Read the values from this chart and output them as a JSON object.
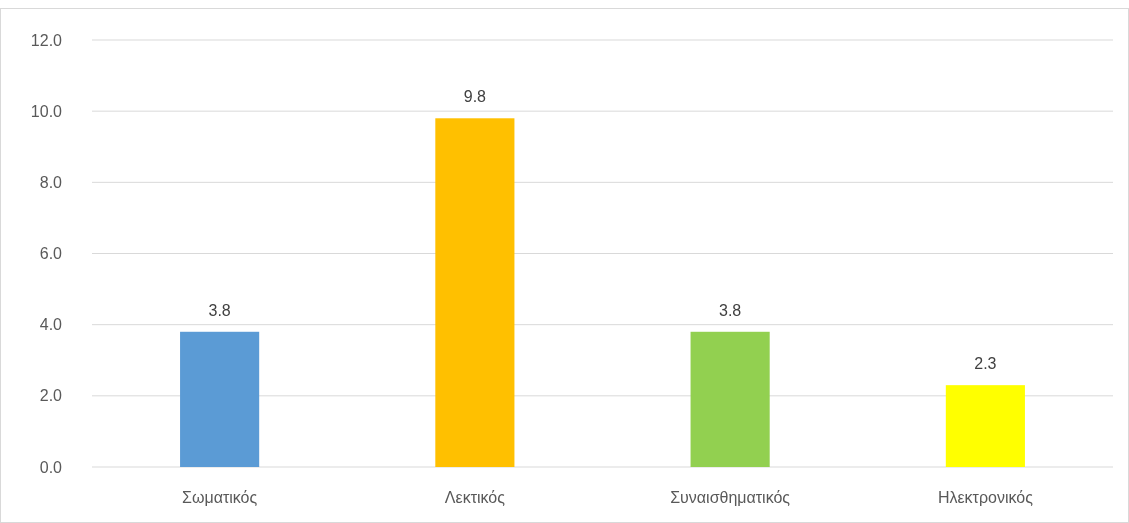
{
  "chart_data": {
    "type": "bar",
    "categories": [
      "Σωματικός",
      "Λεκτικός",
      "Συναισθηματικός",
      "Ηλεκτρονικός"
    ],
    "values": [
      3.8,
      9.8,
      3.8,
      2.3
    ],
    "colors": [
      "#5b9bd5",
      "#ffc000",
      "#92d050",
      "#ffff00"
    ],
    "ylim": [
      0,
      12
    ],
    "yticks": [
      {
        "value": 0,
        "label": "0.0"
      },
      {
        "value": 2,
        "label": "2.0"
      },
      {
        "value": 4,
        "label": "4.0"
      },
      {
        "value": 6,
        "label": "6.0"
      },
      {
        "value": 8,
        "label": "8.0"
      },
      {
        "value": 10,
        "label": "10.0"
      },
      {
        "value": 12,
        "label": "12.0"
      }
    ],
    "grid": "y",
    "data_labels": true
  }
}
